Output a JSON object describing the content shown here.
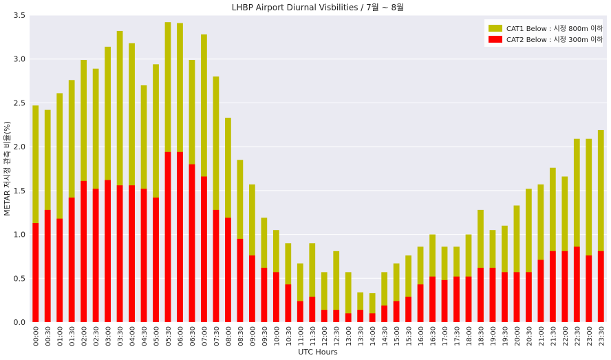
{
  "chart_data": {
    "type": "bar",
    "overlap": true,
    "title": "LHBP Airport Diurnal Visbilities / 7월 ~ 8월",
    "x_label": "UTC Hours",
    "y_label": "METAR 저시정 관측 비율(%)",
    "categories": [
      "00:00",
      "00:30",
      "01:00",
      "01:30",
      "02:00",
      "02:30",
      "03:00",
      "03:30",
      "04:00",
      "04:30",
      "05:00",
      "05:30",
      "06:00",
      "06:30",
      "07:00",
      "07:30",
      "08:00",
      "08:30",
      "09:00",
      "09:30",
      "10:00",
      "10:30",
      "11:00",
      "11:30",
      "12:00",
      "12:30",
      "13:00",
      "13:30",
      "14:00",
      "14:30",
      "15:00",
      "15:30",
      "16:00",
      "16:30",
      "17:00",
      "17:30",
      "18:00",
      "18:30",
      "19:00",
      "19:30",
      "20:00",
      "20:30",
      "21:00",
      "21:30",
      "22:00",
      "22:30",
      "23:00",
      "23:30"
    ],
    "series": [
      {
        "name": "CAT1 Below : 시정 800m 이하",
        "color": "#bfbf00",
        "values": [
          2.47,
          2.42,
          2.61,
          2.76,
          2.99,
          2.89,
          3.14,
          3.32,
          3.18,
          2.7,
          2.94,
          3.42,
          3.41,
          2.99,
          3.28,
          2.8,
          2.33,
          1.85,
          1.57,
          1.19,
          1.05,
          0.9,
          0.67,
          0.9,
          0.57,
          0.81,
          0.57,
          0.34,
          0.33,
          0.57,
          0.67,
          0.76,
          0.86,
          1.0,
          0.86,
          0.86,
          1.0,
          1.28,
          1.05,
          1.1,
          1.33,
          1.52,
          1.57,
          1.76,
          1.66,
          2.09,
          2.09,
          2.19
        ]
      },
      {
        "name": "CAT2 Below : 시정 300m 이하",
        "color": "#ff0000",
        "values": [
          1.13,
          1.28,
          1.18,
          1.42,
          1.61,
          1.52,
          1.62,
          1.56,
          1.56,
          1.52,
          1.42,
          1.94,
          1.94,
          1.8,
          1.66,
          1.28,
          1.19,
          0.95,
          0.76,
          0.62,
          0.57,
          0.43,
          0.24,
          0.29,
          0.14,
          0.14,
          0.1,
          0.14,
          0.1,
          0.19,
          0.24,
          0.29,
          0.43,
          0.52,
          0.48,
          0.52,
          0.52,
          0.62,
          0.62,
          0.57,
          0.57,
          0.57,
          0.71,
          0.81,
          0.81,
          0.86,
          0.76,
          0.81
        ]
      }
    ],
    "ylim": [
      0,
      3.5
    ],
    "yticks": [
      {
        "value": 0,
        "label": "0.0"
      },
      0.5,
      {
        "value": 1,
        "label": "1.0"
      },
      1.5,
      {
        "value": 2,
        "label": "2.0"
      },
      2.5,
      {
        "value": 3,
        "label": "3.0"
      },
      3.5
    ],
    "grid": true,
    "legend": "upper right"
  }
}
